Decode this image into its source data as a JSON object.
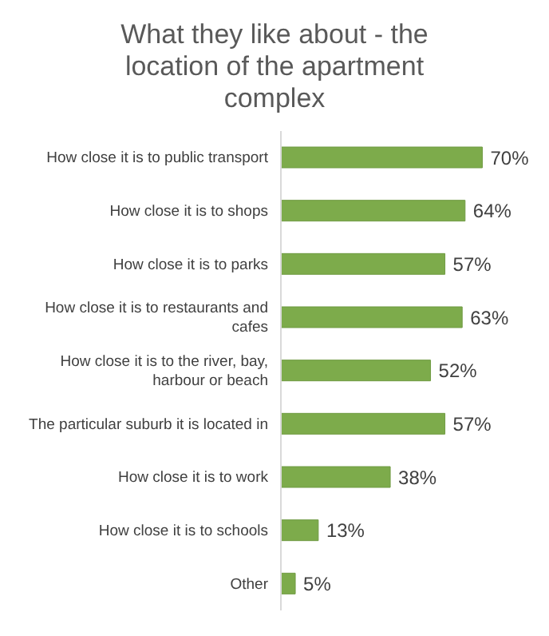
{
  "chart_data": {
    "type": "bar",
    "orientation": "horizontal",
    "title": "What they like about - the location of the apartment complex",
    "categories": [
      "How close it is to public transport",
      "How close it is to shops",
      "How close it is to parks",
      "How close it is to restaurants and cafes",
      "How close it is to the river, bay, harbour or beach",
      "The particular suburb it is located in",
      "How close it is to work",
      "How close it is to schools",
      "Other"
    ],
    "values": [
      70,
      64,
      57,
      63,
      52,
      57,
      38,
      13,
      5
    ],
    "value_labels": [
      "70%",
      "64%",
      "57%",
      "63%",
      "52%",
      "57%",
      "38%",
      "13%",
      "5%"
    ],
    "color": "#7dab4b"
  }
}
